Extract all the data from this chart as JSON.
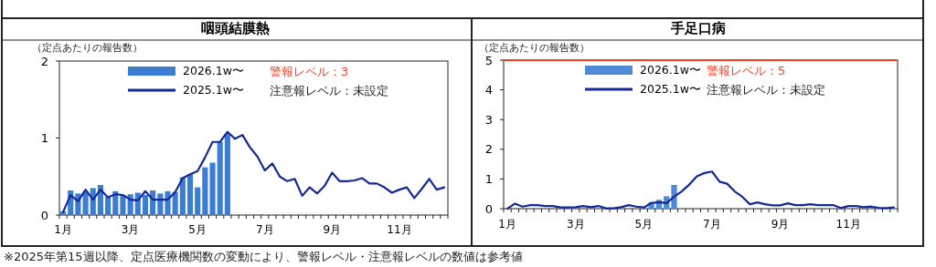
{
  "chart_data": [
    {
      "type": "bar",
      "title": "咽頭結膜熱",
      "ylabel": "（定点あたりの報告数）",
      "categories": [
        "1月",
        null,
        null,
        null,
        null,
        null,
        null,
        null,
        null,
        "3月",
        null,
        null,
        null,
        null,
        null,
        null,
        null,
        null,
        "5月",
        null,
        null,
        null,
        null,
        null,
        null,
        null,
        null,
        "7月",
        null,
        null,
        null,
        null,
        null,
        null,
        null,
        null,
        "9月",
        null,
        null,
        null,
        null,
        null,
        null,
        null,
        null,
        "11月",
        null,
        null,
        null,
        null,
        null,
        null
      ],
      "ylim": [
        0,
        2
      ],
      "yticks": [
        0,
        1,
        2
      ],
      "legend": "top",
      "series": [
        {
          "name": "2026.1w〜",
          "color": "#3b7dd0",
          "values": [
            0.05,
            0.32,
            0.28,
            0.3,
            0.35,
            0.39,
            0.24,
            0.31,
            0.26,
            0.27,
            0.29,
            0.26,
            0.32,
            0.28,
            0.31,
            0.3,
            0.49,
            0.53,
            0.36,
            0.62,
            0.68,
            0.95,
            1.05,
            null,
            null,
            null,
            null,
            null,
            null,
            null,
            null,
            null,
            null,
            null,
            null,
            null,
            null,
            null,
            null,
            null,
            null,
            null,
            null,
            null,
            null,
            null,
            null,
            null,
            null,
            null,
            null,
            null
          ]
        },
        {
          "name": "2025.1w〜",
          "type": "line",
          "color": "#14289a",
          "values": [
            0.04,
            0.26,
            0.18,
            0.33,
            0.2,
            0.33,
            0.23,
            0.27,
            0.26,
            0.2,
            0.19,
            0.31,
            0.2,
            0.2,
            0.2,
            0.3,
            0.48,
            0.53,
            0.57,
            0.75,
            0.95,
            0.95,
            1.08,
            0.99,
            1.04,
            0.88,
            0.76,
            0.58,
            0.67,
            0.5,
            0.44,
            0.47,
            0.25,
            0.36,
            0.28,
            0.38,
            0.55,
            0.44,
            0.44,
            0.45,
            0.48,
            0.41,
            0.41,
            0.36,
            0.29,
            0.33,
            0.36,
            0.22,
            0.34,
            0.47,
            0.33,
            0.36
          ]
        }
      ],
      "annotations": [
        "警報レベル：3",
        "注意報レベル：未設定",
        "※2025年第15週以降、定点医療機関数の変動により、警報レベル・注意報レベルの数値は参考値"
      ]
    },
    {
      "type": "bar",
      "title": "手足口病",
      "ylabel": "（定点あたりの報告数）",
      "categories": [
        "1月",
        null,
        null,
        null,
        null,
        null,
        null,
        null,
        null,
        "3月",
        null,
        null,
        null,
        null,
        null,
        null,
        null,
        null,
        "5月",
        null,
        null,
        null,
        null,
        null,
        null,
        null,
        null,
        "7月",
        null,
        null,
        null,
        null,
        null,
        null,
        null,
        null,
        "9月",
        null,
        null,
        null,
        null,
        null,
        null,
        null,
        null,
        "11月",
        null,
        null,
        null,
        null,
        null,
        null
      ],
      "ylim": [
        0,
        5
      ],
      "yticks": [
        0,
        1,
        2,
        3,
        4,
        5
      ],
      "legend": "top",
      "series": [
        {
          "name": "2026.1w〜",
          "color": "#4f8ad6",
          "values": [
            null,
            null,
            null,
            null,
            null,
            null,
            null,
            null,
            null,
            null,
            null,
            null,
            null,
            null,
            null,
            null,
            null,
            null,
            null,
            0.22,
            0.3,
            0.42,
            0.8,
            null,
            null,
            null,
            null,
            null,
            null,
            null,
            null,
            null,
            null,
            null,
            null,
            null,
            null,
            null,
            null,
            null,
            null,
            null,
            null,
            null,
            null,
            null,
            null,
            null,
            null,
            null,
            null,
            null
          ]
        },
        {
          "name": "2025.1w〜",
          "type": "line",
          "color": "#14289a",
          "values": [
            0,
            0.17,
            0.07,
            0.12,
            0.12,
            0.09,
            0.09,
            0.04,
            0.04,
            0.05,
            0.09,
            0.05,
            0.09,
            0.01,
            0.01,
            0.05,
            0.12,
            0.07,
            0.04,
            0.19,
            0.22,
            0.19,
            0.4,
            0.58,
            0.81,
            1.09,
            1.2,
            1.25,
            0.91,
            0.84,
            0.58,
            0.4,
            0.15,
            0.21,
            0.15,
            0.11,
            0.11,
            0.18,
            0.12,
            0.12,
            0.15,
            0.12,
            0.12,
            0.12,
            0.02,
            0.09,
            0.09,
            0.05,
            0.07,
            0.03,
            0.02,
            0.04
          ]
        }
      ],
      "ref_lines": [
        {
          "axis": "y",
          "value": 5,
          "label": "警報レベル：5",
          "color": "#ff3b1f"
        }
      ],
      "annotations": [
        "注意報レベル：未設定"
      ]
    }
  ]
}
